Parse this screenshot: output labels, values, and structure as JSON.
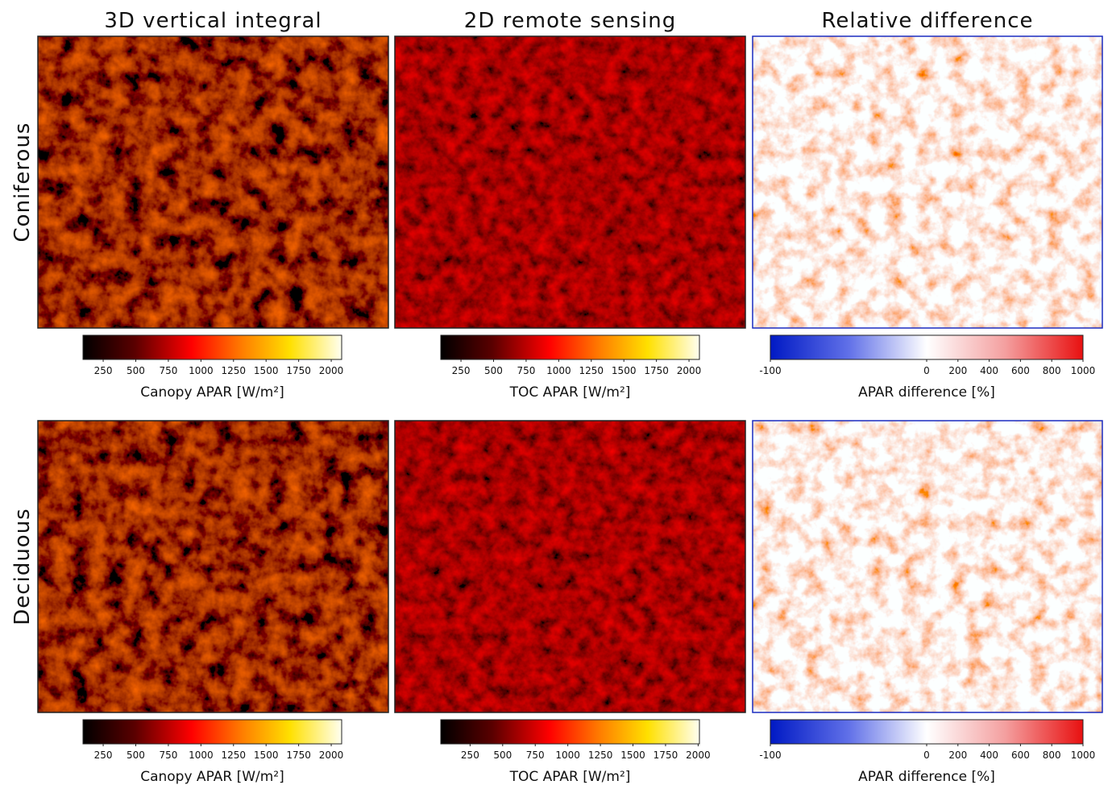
{
  "column_titles": [
    "3D vertical integral",
    "2D remote sensing",
    "Relative difference"
  ],
  "row_labels": [
    "Coniferous",
    "Deciduous"
  ],
  "panels": [
    {
      "colormap": "hot",
      "colorbar": {
        "label": "Canopy APAR [W/m²]",
        "lim": [
          95,
          2080
        ],
        "ticks": [
          250,
          500,
          750,
          1000,
          1250,
          1500,
          1750,
          2000
        ]
      }
    },
    {
      "colormap": "hot",
      "colorbar": {
        "label": "TOC APAR [W/m²]",
        "lim": [
          95,
          2080
        ],
        "ticks": [
          250,
          500,
          750,
          1000,
          1250,
          1500,
          1750,
          2000
        ]
      }
    },
    {
      "colormap": "diverging",
      "colorbar": {
        "label": "APAR difference [%]",
        "lim": [
          -100,
          1000
        ],
        "ticks": [
          -100,
          0,
          200,
          400,
          600,
          800,
          1000
        ]
      }
    },
    {
      "colormap": "hot",
      "colorbar": {
        "label": "Canopy APAR [W/m²]",
        "lim": [
          95,
          2080
        ],
        "ticks": [
          250,
          500,
          750,
          1000,
          1250,
          1500,
          1750,
          2000
        ]
      }
    },
    {
      "colormap": "hot",
      "colorbar": {
        "label": "TOC APAR [W/m²]",
        "lim": [
          25,
          2010
        ],
        "ticks": [
          250,
          500,
          750,
          1000,
          1250,
          1500,
          1750,
          2000
        ]
      }
    },
    {
      "colormap": "diverging",
      "colorbar": {
        "label": "APAR difference [%]",
        "lim": [
          -100,
          1000
        ],
        "ticks": [
          -100,
          0,
          200,
          400,
          600,
          800,
          1000
        ]
      }
    }
  ]
}
